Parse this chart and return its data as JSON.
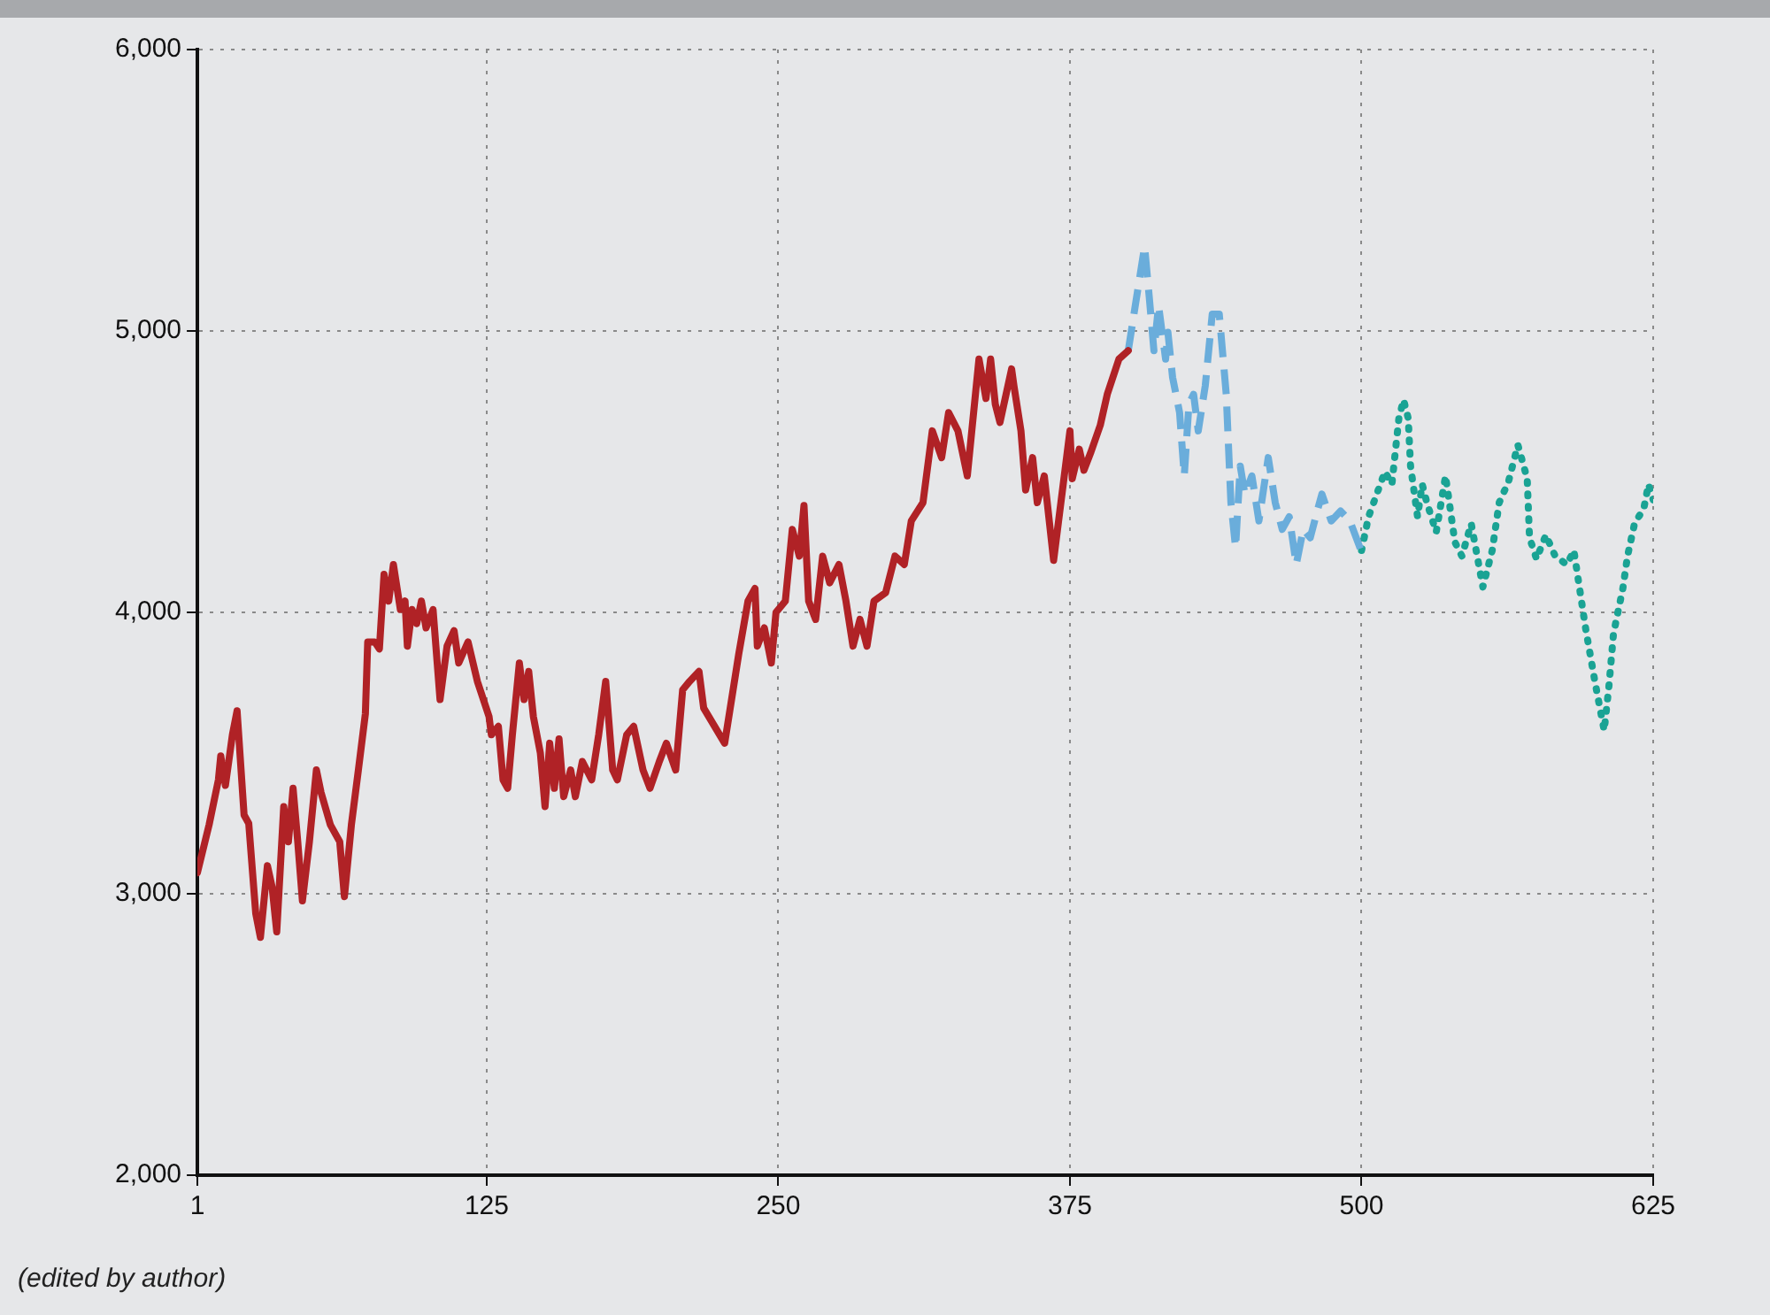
{
  "chart_data": {
    "type": "line",
    "annotations": [
      "(edited by author)"
    ],
    "xlim": [
      1,
      625
    ],
    "xticks": [
      1,
      125,
      250,
      375,
      500,
      625
    ],
    "ylim": [
      2000,
      6000
    ],
    "yticks": [
      {
        "value": 2000,
        "label": "2,000"
      },
      {
        "value": 3000,
        "label": "3,000"
      },
      {
        "value": 4000,
        "label": "4,000"
      },
      {
        "value": 5000,
        "label": "5,000"
      },
      {
        "value": 6000,
        "label": "6,000"
      }
    ],
    "grid": true,
    "legend": false,
    "marker": "none",
    "series": [
      {
        "color": "#b02226",
        "line_style": "solid",
        "x": [
          1,
          6,
          10,
          11,
          13,
          16,
          18,
          21,
          23,
          26,
          28,
          31,
          33,
          35,
          38,
          40,
          42,
          44,
          46,
          49,
          52,
          54,
          58,
          62,
          64,
          67,
          70,
          73,
          74,
          77,
          79,
          81,
          83,
          85,
          88,
          90,
          91,
          93,
          95,
          97,
          99,
          102,
          105,
          108,
          111,
          113,
          117,
          121,
          126,
          127,
          130,
          132,
          134,
          136,
          139,
          141,
          143,
          145,
          148,
          150,
          152,
          154,
          156,
          158,
          161,
          163,
          166,
          170,
          173,
          176,
          179,
          181,
          185,
          188,
          192,
          195,
          199,
          202,
          206,
          209,
          212,
          216,
          218,
          227,
          233,
          237,
          240,
          241,
          244,
          247,
          249,
          253,
          256,
          259,
          261,
          263,
          266,
          269,
          272,
          276,
          279,
          282,
          285,
          288,
          291,
          296,
          300,
          304,
          307,
          312,
          316,
          320,
          323,
          327,
          331,
          336,
          339,
          341,
          343,
          345,
          350,
          351,
          354,
          356,
          359,
          361,
          364,
          368,
          375,
          376,
          379,
          381,
          384,
          388,
          391,
          396,
          400
        ],
        "values": [
          3075,
          3245,
          3405,
          3490,
          3385,
          3565,
          3650,
          3280,
          3250,
          2930,
          2845,
          3100,
          3025,
          2865,
          3310,
          3185,
          3375,
          3185,
          2975,
          3185,
          3440,
          3360,
          3245,
          3185,
          2990,
          3245,
          3440,
          3640,
          3895,
          3895,
          3870,
          4135,
          4040,
          4170,
          4010,
          4040,
          3880,
          4010,
          3960,
          4040,
          3945,
          4010,
          3690,
          3880,
          3935,
          3820,
          3895,
          3755,
          3630,
          3565,
          3595,
          3405,
          3375,
          3565,
          3820,
          3690,
          3790,
          3630,
          3500,
          3310,
          3535,
          3375,
          3550,
          3345,
          3440,
          3345,
          3470,
          3405,
          3565,
          3755,
          3440,
          3405,
          3565,
          3595,
          3440,
          3375,
          3470,
          3535,
          3440,
          3725,
          3755,
          3790,
          3660,
          3535,
          3850,
          4040,
          4085,
          3880,
          3945,
          3820,
          4000,
          4040,
          4295,
          4200,
          4380,
          4040,
          3975,
          4200,
          4105,
          4170,
          4040,
          3880,
          3975,
          3880,
          4040,
          4070,
          4200,
          4170,
          4325,
          4390,
          4645,
          4550,
          4710,
          4645,
          4485,
          4900,
          4760,
          4900,
          4740,
          4675,
          4865,
          4805,
          4645,
          4435,
          4550,
          4390,
          4485,
          4185,
          4645,
          4475,
          4580,
          4505,
          4570,
          4665,
          4775,
          4900,
          4930
        ]
      },
      {
        "color": "#6aaddb",
        "line_style": "dashed",
        "x": [
          400,
          403,
          407,
          409,
          411,
          413,
          416,
          417,
          419,
          422,
          424,
          426,
          428,
          430,
          433,
          436,
          439,
          442,
          444,
          446,
          448,
          450,
          453,
          456,
          460,
          463,
          466,
          469,
          472,
          475,
          478,
          481,
          483,
          487,
          491,
          495,
          500
        ],
        "values": [
          4930,
          5090,
          5300,
          5120,
          4930,
          5090,
          4900,
          4995,
          4835,
          4710,
          4485,
          4740,
          4775,
          4645,
          4805,
          5060,
          5060,
          4775,
          4390,
          4230,
          4520,
          4420,
          4485,
          4325,
          4550,
          4390,
          4295,
          4340,
          4170,
          4295,
          4265,
          4360,
          4420,
          4325,
          4360,
          4325,
          4215
        ]
      },
      {
        "color": "#1aa394",
        "line_style": "dotted",
        "x": [
          500,
          503,
          510,
          513,
          516,
          518,
          520,
          521,
          524,
          526,
          528,
          532,
          536,
          540,
          543,
          547,
          552,
          556,
          559,
          563,
          567,
          571,
          572,
          575,
          579,
          583,
          588,
          591,
          594,
          596,
          600,
          604,
          606,
          608,
          612,
          614,
          617,
          621,
          623,
          625
        ],
        "values": [
          4220,
          4340,
          4500,
          4455,
          4690,
          4755,
          4690,
          4520,
          4340,
          4455,
          4390,
          4285,
          4485,
          4250,
          4200,
          4315,
          4090,
          4220,
          4390,
          4465,
          4595,
          4475,
          4265,
          4190,
          4275,
          4200,
          4170,
          4220,
          4055,
          3945,
          3755,
          3580,
          3735,
          3925,
          4085,
          4200,
          4315,
          4370,
          4455,
          4400
        ]
      }
    ]
  }
}
